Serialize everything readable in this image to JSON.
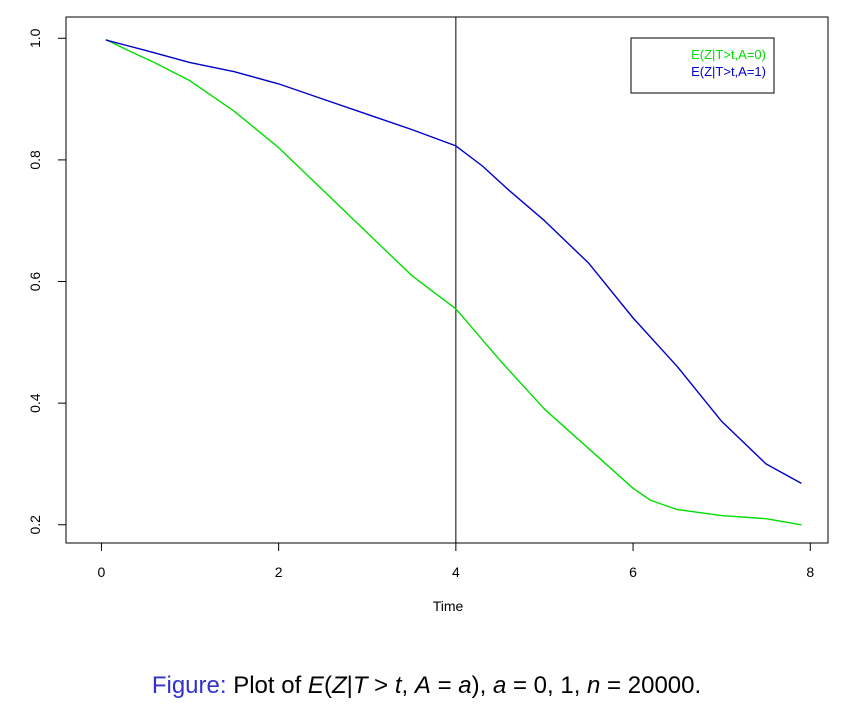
{
  "chart_data": {
    "type": "line",
    "title": "",
    "xlabel": "Time",
    "ylabel": "",
    "xlim": [
      -0.4,
      8.2
    ],
    "ylim": [
      0.17,
      1.035
    ],
    "x_ticks": [
      0,
      2,
      4,
      6,
      8
    ],
    "y_ticks": [
      0.2,
      0.4,
      0.6,
      0.8,
      1.0
    ],
    "x_tick_labels": [
      "0",
      "2",
      "4",
      "6",
      "8"
    ],
    "y_tick_labels": [
      "0.2",
      "0.4",
      "0.6",
      "0.8",
      "1.0"
    ],
    "grid": false,
    "vertical_line_x": 4,
    "legend_position": "top-right",
    "series": [
      {
        "name": "E(Z|T>t,A=0)",
        "color": "#00dd00",
        "x": [
          0.05,
          0.3,
          0.6,
          1.0,
          1.5,
          2.0,
          2.5,
          3.0,
          3.5,
          4.0,
          4.5,
          5.0,
          5.5,
          6.0,
          6.2,
          6.5,
          7.0,
          7.5,
          7.9
        ],
        "y": [
          0.998,
          0.98,
          0.96,
          0.93,
          0.88,
          0.82,
          0.75,
          0.68,
          0.61,
          0.555,
          0.47,
          0.39,
          0.325,
          0.26,
          0.24,
          0.225,
          0.215,
          0.21,
          0.2
        ]
      },
      {
        "name": "E(Z|T>t,A=1)",
        "color": "#0000cc",
        "x": [
          0.05,
          0.5,
          1.0,
          1.5,
          2.0,
          2.5,
          3.0,
          3.5,
          4.0,
          4.3,
          4.6,
          5.0,
          5.5,
          6.0,
          6.5,
          7.0,
          7.5,
          7.9
        ],
        "y": [
          0.997,
          0.98,
          0.96,
          0.945,
          0.925,
          0.9,
          0.875,
          0.85,
          0.823,
          0.79,
          0.75,
          0.7,
          0.63,
          0.54,
          0.46,
          0.37,
          0.3,
          0.268
        ]
      }
    ]
  },
  "caption": {
    "label": "Figure:",
    "text_prefix": "Plot of",
    "text_suffix": "20000."
  }
}
